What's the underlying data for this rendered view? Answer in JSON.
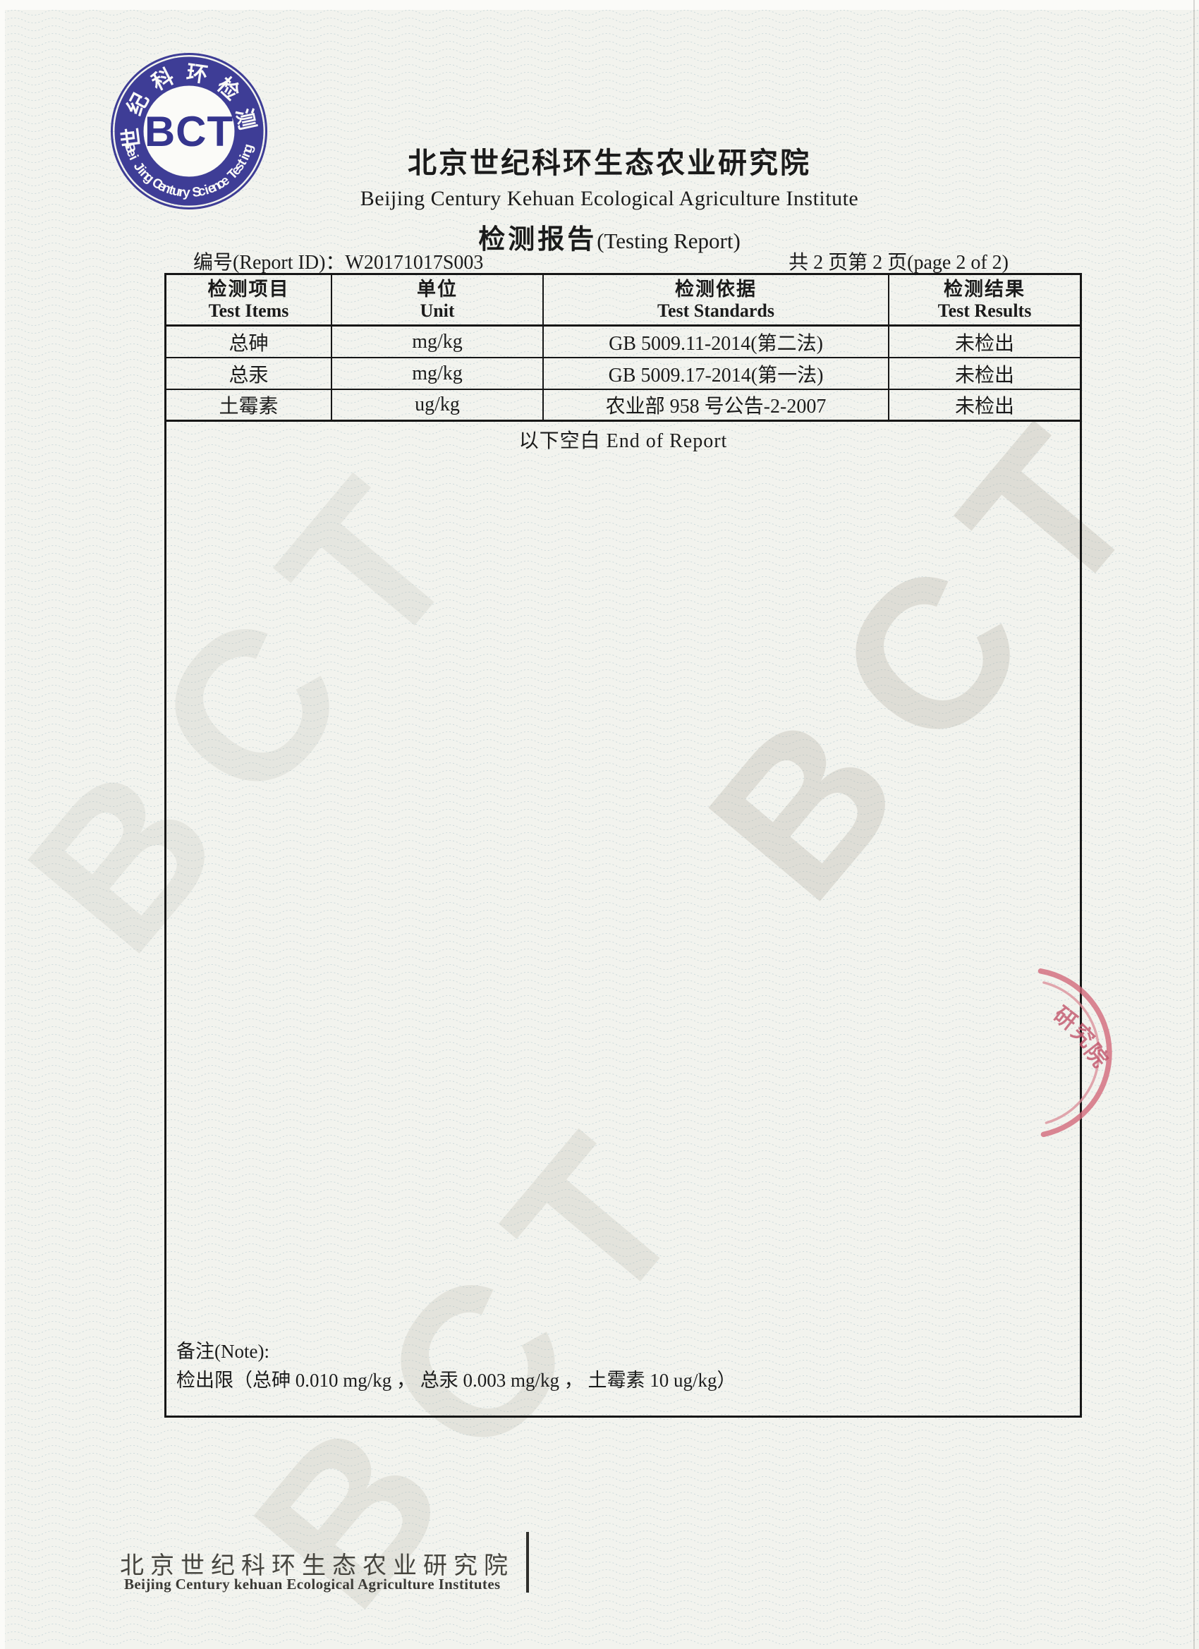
{
  "logo": {
    "abbr": "BCT",
    "ring_top": "世纪科环检测",
    "ring_bottom": "Bei Jing Century Science Testing",
    "color": "#3e3d96"
  },
  "header": {
    "title_cn": "北京世纪科环生态农业研究院",
    "title_en": "Beijing Century Kehuan Ecological Agriculture Institute",
    "report_title_cn": "检测报告",
    "report_title_en": "(Testing Report)"
  },
  "meta": {
    "report_id_label": "编号(Report ID)：",
    "report_id": "W20171017S003",
    "page_info": "共 2 页第 2 页(page 2 of 2)"
  },
  "table": {
    "headers": [
      {
        "cn": "检测项目",
        "en": "Test Items"
      },
      {
        "cn": "单位",
        "en": "Unit"
      },
      {
        "cn": "检测依据",
        "en": "Test Standards"
      },
      {
        "cn": "检测结果",
        "en": "Test Results"
      }
    ],
    "rows": [
      [
        "总砷",
        "mg/kg",
        "GB 5009.11-2014(第二法)",
        "未检出"
      ],
      [
        "总汞",
        "mg/kg",
        "GB 5009.17-2014(第一法)",
        "未检出"
      ],
      [
        "土霉素",
        "ug/kg",
        "农业部 958 号公告-2-2007",
        "未检出"
      ]
    ],
    "end_of_report": "以下空白 End of Report"
  },
  "note": {
    "label": "备注(Note):",
    "text": "检出限（总砷  0.010 mg/kg ， 总汞  0.003 mg/kg ， 土霉素  10 ug/kg）"
  },
  "stamp": {
    "chars": [
      "研",
      "究",
      "院"
    ],
    "color": "#cf6376"
  },
  "watermark": {
    "text": "BCT"
  },
  "footer": {
    "cn": "北京世纪科环生态农业研究院",
    "en": "Beijing Century kehuan Ecological Agriculture Institutes"
  }
}
